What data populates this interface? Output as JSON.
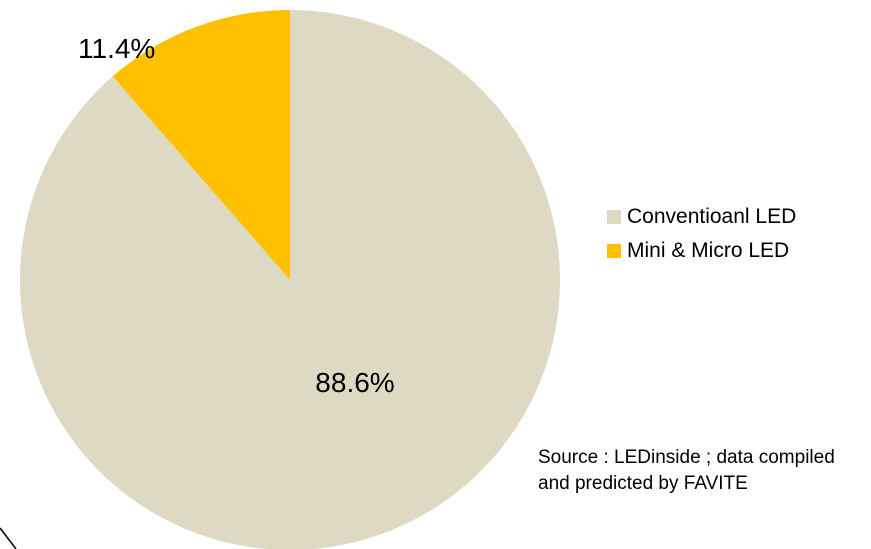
{
  "chart_data": {
    "type": "pie",
    "title": "",
    "categories": [
      "Conventioanl LED",
      "Mini & Micro LED"
    ],
    "values": [
      88.6,
      11.4
    ],
    "data_labels": [
      "88.6%",
      "11.4%"
    ],
    "colors": [
      "#DDD9C3",
      "#FFC000"
    ],
    "legend_position": "right",
    "start_angle": "12 o'clock",
    "direction": "clockwise, Mini & Micro LED slice ends at 12 o'clock"
  },
  "legend": {
    "items": [
      {
        "label": "Conventioanl LED",
        "color": "#DDD9C3"
      },
      {
        "label": "Mini & Micro LED",
        "color": "#FFC000"
      }
    ]
  },
  "source_note": "Source : LEDinside ; data compiled\nand predicted by FAVITE"
}
